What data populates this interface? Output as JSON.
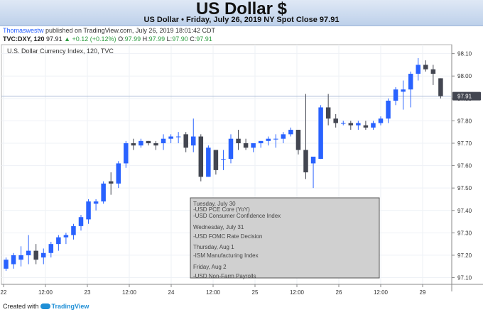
{
  "header": {
    "title": "US Dollar $",
    "subtitle": "US Dollar • Friday, July 26, 2019 NY Spot Close 97.91"
  },
  "publish": {
    "author": "Thomaswestw",
    "text": " published on TradingView.com, July 26, 2019 18:01:42 CDT"
  },
  "ohlc": {
    "symbol": "TVC:DXY, 120",
    "last": "97.91",
    "change": "▲ +0.12 (+0.12%)",
    "o_label": "O:",
    "o": "97.99",
    "h_label": "H:",
    "h": "97.99",
    "l_label": "L:",
    "l": "97.90",
    "c_label": "C:",
    "c": "97.91"
  },
  "footer": {
    "prefix": "Created with",
    "brand": "TradingView"
  },
  "colors": {
    "bull": "#2962ff",
    "bear": "#434651",
    "grid": "#eef1f6",
    "price_line": "#a9bad6",
    "box_fill": "#d0d0d0"
  },
  "chart_data": {
    "type": "candlestick",
    "title": "U.S. Dollar Currency Index, 120, TVC",
    "ylim": [
      97.07,
      98.14
    ],
    "y_ticks": [
      "98.10",
      "98.00",
      "97.90",
      "97.80",
      "97.70",
      "97.60",
      "97.50",
      "97.40",
      "97.30",
      "97.20",
      "97.10"
    ],
    "x_ticks": [
      "22",
      "12:00",
      "23",
      "12:00",
      "24",
      "12:00",
      "25",
      "12:00",
      "26",
      "12:00",
      "29"
    ],
    "current_price": "97.91",
    "grid": true,
    "candles": [
      {
        "o": 97.14,
        "h": 97.19,
        "l": 97.13,
        "c": 97.18
      },
      {
        "o": 97.16,
        "h": 97.21,
        "l": 97.14,
        "c": 97.2
      },
      {
        "o": 97.18,
        "h": 97.24,
        "l": 97.15,
        "c": 97.2
      },
      {
        "o": 97.2,
        "h": 97.29,
        "l": 97.16,
        "c": 97.22
      },
      {
        "o": 97.22,
        "h": 97.25,
        "l": 97.16,
        "c": 97.18
      },
      {
        "o": 97.19,
        "h": 97.23,
        "l": 97.16,
        "c": 97.21
      },
      {
        "o": 97.21,
        "h": 97.26,
        "l": 97.19,
        "c": 97.25
      },
      {
        "o": 97.25,
        "h": 97.29,
        "l": 97.22,
        "c": 97.28
      },
      {
        "o": 97.28,
        "h": 97.3,
        "l": 97.25,
        "c": 97.29
      },
      {
        "o": 97.29,
        "h": 97.34,
        "l": 97.27,
        "c": 97.33
      },
      {
        "o": 97.33,
        "h": 97.38,
        "l": 97.31,
        "c": 97.37
      },
      {
        "o": 97.36,
        "h": 97.45,
        "l": 97.34,
        "c": 97.44
      },
      {
        "o": 97.43,
        "h": 97.45,
        "l": 97.4,
        "c": 97.44
      },
      {
        "o": 97.44,
        "h": 97.53,
        "l": 97.43,
        "c": 97.52
      },
      {
        "o": 97.53,
        "h": 97.57,
        "l": 97.47,
        "c": 97.52
      },
      {
        "o": 97.52,
        "h": 97.62,
        "l": 97.5,
        "c": 97.61
      },
      {
        "o": 97.61,
        "h": 97.71,
        "l": 97.59,
        "c": 97.7
      },
      {
        "o": 97.7,
        "h": 97.72,
        "l": 97.67,
        "c": 97.69
      },
      {
        "o": 97.69,
        "h": 97.72,
        "l": 97.68,
        "c": 97.71
      },
      {
        "o": 97.71,
        "h": 97.71,
        "l": 97.69,
        "c": 97.7
      },
      {
        "o": 97.7,
        "h": 97.71,
        "l": 97.67,
        "c": 97.69
      },
      {
        "o": 97.7,
        "h": 97.74,
        "l": 97.67,
        "c": 97.72
      },
      {
        "o": 97.72,
        "h": 97.74,
        "l": 97.7,
        "c": 97.73
      },
      {
        "o": 97.73,
        "h": 97.75,
        "l": 97.7,
        "c": 97.73
      },
      {
        "o": 97.74,
        "h": 97.75,
        "l": 97.66,
        "c": 97.68
      },
      {
        "o": 97.69,
        "h": 97.81,
        "l": 97.66,
        "c": 97.73
      },
      {
        "o": 97.73,
        "h": 97.74,
        "l": 97.53,
        "c": 97.55
      },
      {
        "o": 97.55,
        "h": 97.69,
        "l": 97.55,
        "c": 97.68
      },
      {
        "o": 97.67,
        "h": 97.67,
        "l": 97.56,
        "c": 97.58
      },
      {
        "o": 97.63,
        "h": 97.67,
        "l": 97.58,
        "c": 97.63
      },
      {
        "o": 97.63,
        "h": 97.74,
        "l": 97.61,
        "c": 97.72
      },
      {
        "o": 97.72,
        "h": 97.76,
        "l": 97.67,
        "c": 97.7
      },
      {
        "o": 97.7,
        "h": 97.72,
        "l": 97.67,
        "c": 97.68
      },
      {
        "o": 97.68,
        "h": 97.7,
        "l": 97.66,
        "c": 97.7
      },
      {
        "o": 97.7,
        "h": 97.71,
        "l": 97.68,
        "c": 97.71
      },
      {
        "o": 97.71,
        "h": 97.73,
        "l": 97.69,
        "c": 97.72
      },
      {
        "o": 97.72,
        "h": 97.74,
        "l": 97.68,
        "c": 97.72
      },
      {
        "o": 97.72,
        "h": 97.75,
        "l": 97.7,
        "c": 97.74
      },
      {
        "o": 97.74,
        "h": 97.77,
        "l": 97.73,
        "c": 97.76
      },
      {
        "o": 97.76,
        "h": 97.76,
        "l": 97.65,
        "c": 97.67
      },
      {
        "o": 97.67,
        "h": 97.92,
        "l": 97.54,
        "c": 97.57
      },
      {
        "o": 97.61,
        "h": 97.63,
        "l": 97.5,
        "c": 97.64
      },
      {
        "o": 97.63,
        "h": 97.87,
        "l": 97.63,
        "c": 97.86
      },
      {
        "o": 97.86,
        "h": 97.92,
        "l": 97.78,
        "c": 97.81
      },
      {
        "o": 97.81,
        "h": 97.83,
        "l": 97.77,
        "c": 97.79
      },
      {
        "o": 97.79,
        "h": 97.8,
        "l": 97.78,
        "c": 97.79
      },
      {
        "o": 97.79,
        "h": 97.8,
        "l": 97.76,
        "c": 97.78
      },
      {
        "o": 97.78,
        "h": 97.8,
        "l": 97.76,
        "c": 97.79
      },
      {
        "o": 97.78,
        "h": 97.8,
        "l": 97.76,
        "c": 97.77
      },
      {
        "o": 97.77,
        "h": 97.8,
        "l": 97.76,
        "c": 97.79
      },
      {
        "o": 97.79,
        "h": 97.82,
        "l": 97.78,
        "c": 97.81
      },
      {
        "o": 97.81,
        "h": 97.9,
        "l": 97.79,
        "c": 97.89
      },
      {
        "o": 97.89,
        "h": 97.95,
        "l": 97.87,
        "c": 97.94
      },
      {
        "o": 97.93,
        "h": 97.98,
        "l": 97.85,
        "c": 97.94
      },
      {
        "o": 97.94,
        "h": 98.02,
        "l": 97.86,
        "c": 98.01
      },
      {
        "o": 98.01,
        "h": 98.08,
        "l": 97.98,
        "c": 98.05
      },
      {
        "o": 98.05,
        "h": 98.07,
        "l": 98.02,
        "c": 98.03
      },
      {
        "o": 98.03,
        "h": 98.05,
        "l": 97.96,
        "c": 98.01
      },
      {
        "o": 97.99,
        "h": 97.99,
        "l": 97.9,
        "c": 97.91
      }
    ],
    "annotation": {
      "lines": [
        "Tuesday, July 30",
        "-USD PCE Core (YoY)",
        "-USD Consumer Confidence Index",
        "Wednesday, July 31",
        "-USD FOMC Rate Decision",
        "Thursday, Aug 1",
        "-ISM Manufacturing Index",
        "Friday, Aug 2",
        "-USD Non-Farm Payrolls"
      ]
    }
  }
}
